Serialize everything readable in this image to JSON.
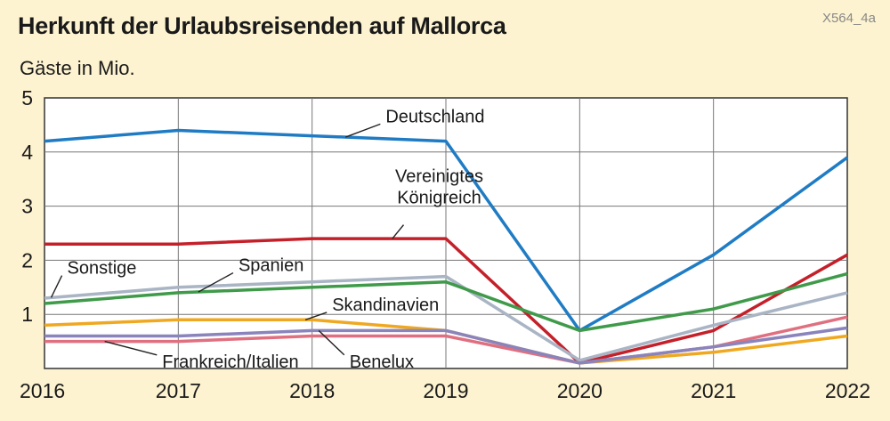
{
  "title": "Herkunft der Urlaubsreisenden auf Mallorca",
  "ref": "X564_4a",
  "unit": "Gäste in Mio.",
  "chart_data": {
    "type": "line",
    "title": "Herkunft der Urlaubsreisenden auf Mallorca",
    "ylabel": "Gäste in Mio.",
    "xlabel": "",
    "x": [
      "2016",
      "2017",
      "2018",
      "2019",
      "2020",
      "2021",
      "2022"
    ],
    "ylim": [
      0,
      5
    ],
    "yticks": [
      1,
      2,
      3,
      4,
      5
    ],
    "grid": true,
    "series": [
      {
        "name": "Deutschland",
        "color": "#1f7cc4",
        "values": [
          4.2,
          4.4,
          4.3,
          4.2,
          0.7,
          2.1,
          3.9
        ]
      },
      {
        "name": "Vereinigtes Königreich",
        "color": "#c4202a",
        "values": [
          2.3,
          2.3,
          2.4,
          2.4,
          0.1,
          0.7,
          2.1
        ]
      },
      {
        "name": "Sonstige",
        "color": "#a9b4c4",
        "values": [
          1.3,
          1.5,
          1.6,
          1.7,
          0.15,
          0.8,
          1.4
        ]
      },
      {
        "name": "Spanien",
        "color": "#3f9a4a",
        "values": [
          1.2,
          1.4,
          1.5,
          1.6,
          0.7,
          1.1,
          1.75
        ]
      },
      {
        "name": "Skandinavien",
        "color": "#efa820",
        "values": [
          0.8,
          0.9,
          0.9,
          0.7,
          0.1,
          0.3,
          0.6
        ]
      },
      {
        "name": "Frankreich/Italien",
        "color": "#e07080",
        "values": [
          0.5,
          0.5,
          0.6,
          0.6,
          0.1,
          0.4,
          0.95
        ]
      },
      {
        "name": "Benelux",
        "color": "#8a84bc",
        "values": [
          0.6,
          0.6,
          0.7,
          0.7,
          0.1,
          0.4,
          0.75
        ]
      }
    ],
    "labels": [
      {
        "series": "Deutschland",
        "lines": [
          "Deutschland"
        ]
      },
      {
        "series": "Vereinigtes Königreich",
        "lines": [
          "Vereinigtes",
          "Königreich"
        ]
      },
      {
        "series": "Sonstige",
        "lines": [
          "Sonstige"
        ]
      },
      {
        "series": "Spanien",
        "lines": [
          "Spanien"
        ]
      },
      {
        "series": "Skandinavien",
        "lines": [
          "Skandinavien"
        ]
      },
      {
        "series": "Frankreich/Italien",
        "lines": [
          "Frankreich/Italien"
        ]
      },
      {
        "series": "Benelux",
        "lines": [
          "Benelux"
        ]
      }
    ]
  }
}
